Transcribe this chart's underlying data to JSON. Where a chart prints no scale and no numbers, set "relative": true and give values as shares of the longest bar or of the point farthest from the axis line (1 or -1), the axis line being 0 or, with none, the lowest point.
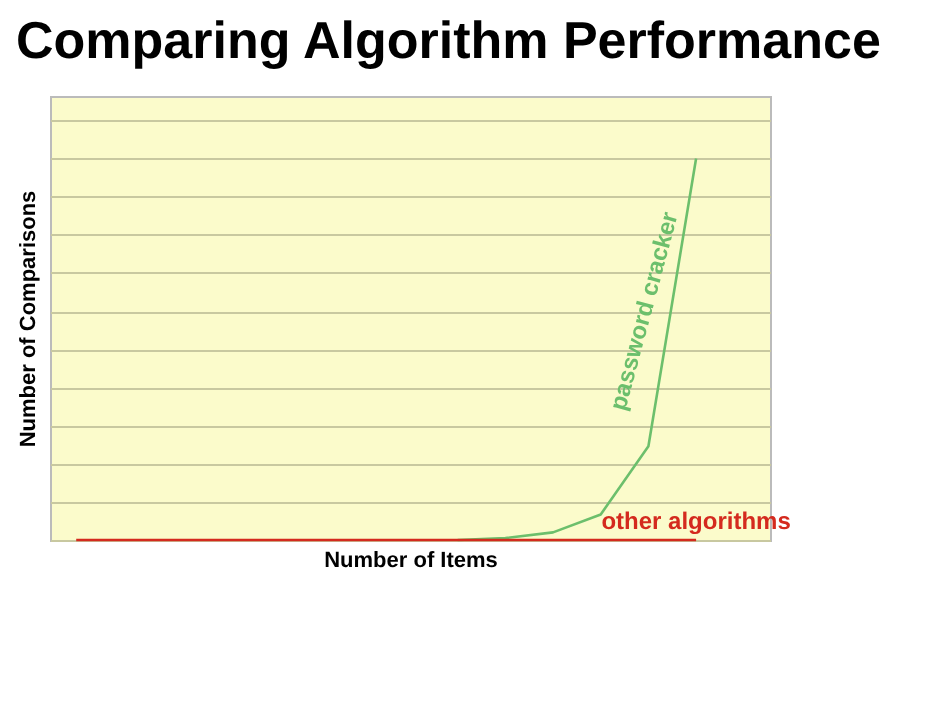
{
  "chart_data": {
    "type": "line",
    "title": "Comparing Algorithm Performance",
    "xlabel": "Number of Items",
    "ylabel": "Number of Comparisons",
    "categories": [
      null,
      null,
      null,
      null,
      null,
      null,
      null,
      null,
      null,
      null,
      null,
      null,
      null,
      null
    ],
    "relative": true,
    "grid": "y",
    "series": [
      {
        "name": "password cracker",
        "color": "#6cbf6c",
        "values": [
          null,
          null,
          null,
          null,
          null,
          null,
          null,
          null,
          0,
          0.005,
          0.02,
          0.067,
          0.246,
          1
        ]
      },
      {
        "name": "other algorithms",
        "color": "#d42a1e",
        "values": [
          0,
          0,
          0,
          0,
          0,
          0,
          0,
          0,
          0,
          0,
          0,
          0,
          0,
          0
        ]
      }
    ]
  }
}
